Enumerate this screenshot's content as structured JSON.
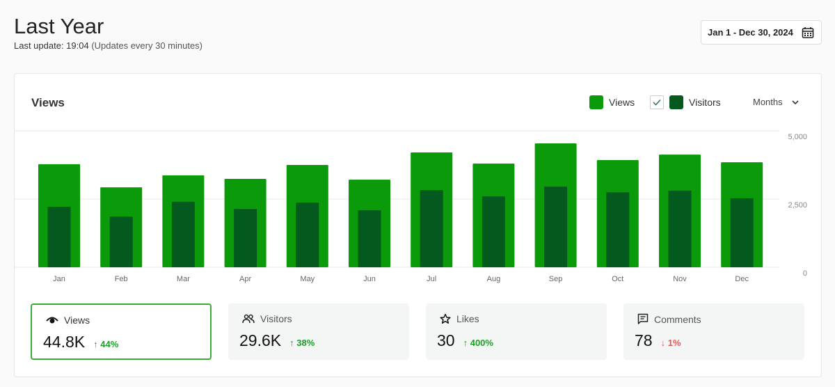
{
  "header": {
    "title": "Last Year",
    "last_update_label": "Last update: 19:04",
    "update_note": "(Updates every 30 minutes)",
    "date_range": "Jan 1 - Dec 30, 2024"
  },
  "card": {
    "title": "Views",
    "legend": [
      {
        "label": "Views",
        "color": "#0a9a0a"
      },
      {
        "label": "Visitors",
        "color": "#045a1e",
        "checked": true
      }
    ],
    "period_select": "Months"
  },
  "chart_data": {
    "type": "bar",
    "categories": [
      "Jan",
      "Feb",
      "Mar",
      "Apr",
      "May",
      "Jun",
      "Jul",
      "Aug",
      "Sep",
      "Oct",
      "Nov",
      "Dec"
    ],
    "series": [
      {
        "name": "Views",
        "color": "#0a9a0a",
        "values": [
          3780,
          2930,
          3370,
          3240,
          3750,
          3210,
          4210,
          3800,
          4540,
          3930,
          4130,
          3850
        ]
      },
      {
        "name": "Visitors",
        "color": "#045a1e",
        "values": [
          2220,
          1860,
          2400,
          2140,
          2370,
          2090,
          2830,
          2600,
          2960,
          2750,
          2810,
          2530
        ]
      }
    ],
    "yticks": [
      "0",
      "2,500",
      "5,000"
    ],
    "ylim": [
      0,
      5000
    ],
    "grid": true,
    "overlaid": true
  },
  "stats": [
    {
      "label": "Views",
      "icon": "eye-icon",
      "value": "44.8K",
      "change": "44%",
      "direction": "up",
      "active": true
    },
    {
      "label": "Visitors",
      "icon": "users-icon",
      "value": "29.6K",
      "change": "38%",
      "direction": "up"
    },
    {
      "label": "Likes",
      "icon": "star-icon",
      "value": "30",
      "change": "400%",
      "direction": "up"
    },
    {
      "label": "Comments",
      "icon": "comment-icon",
      "value": "78",
      "change": "1%",
      "direction": "down"
    }
  ],
  "arrows": {
    "up": "↑",
    "down": "↓"
  }
}
